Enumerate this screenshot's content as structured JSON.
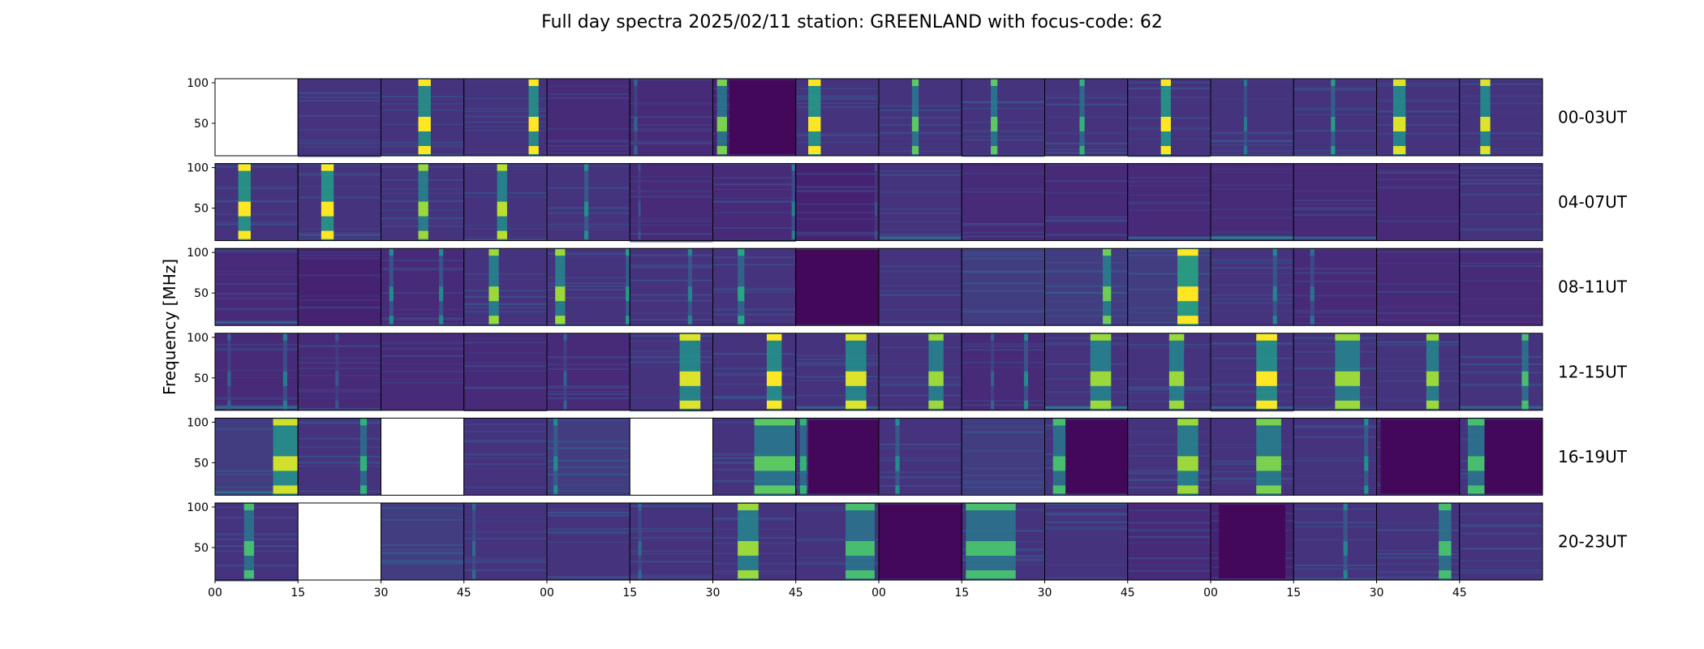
{
  "chart_data": {
    "type": "heatmap",
    "title": "Full day spectra 2025/02/11 station: GREENLAND with focus-code: 62",
    "ylabel": "Frequency [MHz]",
    "xlabel": "",
    "y_ticks": [
      "100",
      "50"
    ],
    "ylim": [
      10,
      105
    ],
    "x_ticks": [
      "00",
      "15",
      "30",
      "45",
      "00",
      "15",
      "30",
      "45",
      "00",
      "15",
      "30",
      "45",
      "00",
      "15",
      "30",
      "45"
    ],
    "colormap": "viridis",
    "rows": [
      {
        "label": "00-03UT",
        "panels": [
          {
            "empty": true
          },
          {
            "bursts": [],
            "level": 0.15
          },
          {
            "bursts": [
              [
                0.45,
                0.15,
                0.85
              ]
            ],
            "level": 0.15
          },
          {
            "bursts": [
              [
                0.78,
                0.12,
                0.85
              ]
            ],
            "level": 0.15
          },
          {
            "bursts": [],
            "level": 0.12
          },
          {
            "bursts": [
              [
                0.05,
                0.04,
                0.2
              ]
            ],
            "level": 0.12
          },
          {
            "bursts": [
              [
                0.05,
                0.12,
                0.7
              ]
            ],
            "level": 0.1,
            "dark": [
              0.2,
              1.0
            ]
          },
          {
            "bursts": [
              [
                0.15,
                0.15,
                0.9
              ]
            ],
            "level": 0.15
          },
          {
            "bursts": [
              [
                0.4,
                0.08,
                0.6
              ]
            ],
            "level": 0.15
          },
          {
            "bursts": [
              [
                0.35,
                0.08,
                0.6
              ]
            ],
            "level": 0.15
          },
          {
            "bursts": [
              [
                0.42,
                0.06,
                0.5
              ]
            ],
            "level": 0.15
          },
          {
            "bursts": [
              [
                0.4,
                0.12,
                0.9
              ]
            ],
            "level": 0.15
          },
          {
            "bursts": [
              [
                0.4,
                0.04,
                0.25
              ]
            ],
            "level": 0.15
          },
          {
            "bursts": [
              [
                0.45,
                0.05,
                0.4
              ]
            ],
            "level": 0.15
          },
          {
            "bursts": [
              [
                0.2,
                0.15,
                0.8
              ]
            ],
            "level": 0.15
          },
          {
            "bursts": [
              [
                0.25,
                0.12,
                0.8
              ]
            ],
            "level": 0.15
          }
        ]
      },
      {
        "label": "04-07UT",
        "panels": [
          {
            "bursts": [
              [
                0.28,
                0.15,
                0.9
              ]
            ],
            "level": 0.15
          },
          {
            "bursts": [
              [
                0.28,
                0.15,
                0.9
              ]
            ],
            "level": 0.15
          },
          {
            "bursts": [
              [
                0.45,
                0.12,
                0.7
              ]
            ],
            "level": 0.15
          },
          {
            "bursts": [
              [
                0.4,
                0.12,
                0.75
              ]
            ],
            "level": 0.15
          },
          {
            "bursts": [
              [
                0.45,
                0.05,
                0.35
              ]
            ],
            "level": 0.15
          },
          {
            "bursts": [
              [
                0.1,
                0.03,
                0.15
              ]
            ],
            "level": 0.12
          },
          {
            "bursts": [
              [
                0.95,
                0.04,
                0.3
              ]
            ],
            "level": 0.12
          },
          {
            "bursts": [
              [
                0.95,
                0.03,
                0.15
              ]
            ],
            "level": 0.1
          },
          {
            "bursts": [],
            "level": 0.15,
            "floor": 0.35
          },
          {
            "bursts": [],
            "level": 0.12
          },
          {
            "bursts": [],
            "level": 0.12
          },
          {
            "bursts": [],
            "level": 0.12,
            "floor": 0.3
          },
          {
            "bursts": [],
            "level": 0.12,
            "floor": 0.45
          },
          {
            "bursts": [],
            "level": 0.12,
            "floor": 0.3
          },
          {
            "bursts": [],
            "level": 0.12
          },
          {
            "bursts": [],
            "level": 0.15
          }
        ]
      },
      {
        "label": "08-11UT",
        "panels": [
          {
            "bursts": [],
            "level": 0.12,
            "floor": 0.3
          },
          {
            "bursts": [],
            "level": 0.1
          },
          {
            "bursts": [
              [
                0.1,
                0.05,
                0.35
              ],
              [
                0.7,
                0.05,
                0.35
              ]
            ],
            "level": 0.12
          },
          {
            "bursts": [
              [
                0.3,
                0.12,
                0.7
              ]
            ],
            "level": 0.15
          },
          {
            "bursts": [
              [
                0.1,
                0.12,
                0.7
              ],
              [
                0.95,
                0.05,
                0.4
              ]
            ],
            "level": 0.15
          },
          {
            "bursts": [
              [
                0.7,
                0.05,
                0.3
              ]
            ],
            "level": 0.15
          },
          {
            "bursts": [
              [
                0.3,
                0.08,
                0.45
              ]
            ],
            "level": 0.15
          },
          {
            "bursts": [],
            "level": 0.08,
            "dark": [
              0.0,
              1.0
            ]
          },
          {
            "bursts": [],
            "level": 0.15
          },
          {
            "bursts": [],
            "level": 0.18
          },
          {
            "bursts": [
              [
                0.7,
                0.1,
                0.6
              ]
            ],
            "level": 0.18
          },
          {
            "bursts": [
              [
                0.6,
                0.25,
                0.95
              ]
            ],
            "level": 0.18
          },
          {
            "bursts": [
              [
                0.75,
                0.05,
                0.3
              ]
            ],
            "level": 0.15
          },
          {
            "bursts": [
              [
                0.2,
                0.05,
                0.25
              ]
            ],
            "level": 0.12
          },
          {
            "bursts": [],
            "level": 0.12
          },
          {
            "bursts": [],
            "level": 0.12
          }
        ]
      },
      {
        "label": "12-15UT",
        "panels": [
          {
            "bursts": [
              [
                0.15,
                0.04,
                0.2
              ],
              [
                0.82,
                0.05,
                0.3
              ]
            ],
            "level": 0.12,
            "floor": 0.35
          },
          {
            "bursts": [
              [
                0.45,
                0.04,
                0.15
              ]
            ],
            "level": 0.12
          },
          {
            "bursts": [],
            "level": 0.12
          },
          {
            "bursts": [],
            "level": 0.12
          },
          {
            "bursts": [
              [
                0.2,
                0.04,
                0.2
              ]
            ],
            "level": 0.12
          },
          {
            "bursts": [
              [
                0.6,
                0.25,
                0.8
              ]
            ],
            "level": 0.15
          },
          {
            "bursts": [
              [
                0.65,
                0.18,
                0.85
              ]
            ],
            "level": 0.15
          },
          {
            "bursts": [
              [
                0.6,
                0.25,
                0.8
              ]
            ],
            "level": 0.15,
            "floor": 0.3
          },
          {
            "bursts": [
              [
                0.6,
                0.18,
                0.7
              ]
            ],
            "level": 0.15
          },
          {
            "bursts": [
              [
                0.35,
                0.04,
                0.2
              ],
              [
                0.75,
                0.05,
                0.35
              ]
            ],
            "level": 0.12
          },
          {
            "bursts": [
              [
                0.55,
                0.25,
                0.7
              ]
            ],
            "level": 0.15,
            "floor": 0.4
          },
          {
            "bursts": [
              [
                0.5,
                0.18,
                0.7
              ]
            ],
            "level": 0.15
          },
          {
            "bursts": [
              [
                0.55,
                0.25,
                0.85
              ]
            ],
            "level": 0.15,
            "floor": 0.3
          },
          {
            "bursts": [
              [
                0.5,
                0.3,
                0.7
              ]
            ],
            "level": 0.15
          },
          {
            "bursts": [
              [
                0.6,
                0.15,
                0.7
              ]
            ],
            "level": 0.15
          },
          {
            "bursts": [
              [
                0.75,
                0.08,
                0.55
              ]
            ],
            "level": 0.15,
            "floor": 0.3
          }
        ]
      },
      {
        "label": "16-19UT",
        "panels": [
          {
            "bursts": [
              [
                0.7,
                0.3,
                0.75
              ]
            ],
            "level": 0.18,
            "floor": 0.35
          },
          {
            "bursts": [
              [
                0.75,
                0.08,
                0.5
              ]
            ],
            "level": 0.15
          },
          {
            "empty": true
          },
          {
            "bursts": [],
            "level": 0.15
          },
          {
            "bursts": [
              [
                0.08,
                0.05,
                0.3
              ]
            ],
            "level": 0.18
          },
          {
            "empty": true
          },
          {
            "bursts": [
              [
                0.5,
                0.5,
                0.6
              ]
            ],
            "level": 0.15
          },
          {
            "bursts": [
              [
                0.05,
                0.08,
                0.5
              ]
            ],
            "level": 0.15,
            "dark": [
              0.15,
              1.0
            ]
          },
          {
            "bursts": [
              [
                0.2,
                0.05,
                0.35
              ]
            ],
            "level": 0.15
          },
          {
            "bursts": [],
            "level": 0.18
          },
          {
            "bursts": [
              [
                0.1,
                0.15,
                0.55
              ]
            ],
            "level": 0.15,
            "dark": [
              0.25,
              1.0
            ]
          },
          {
            "bursts": [
              [
                0.6,
                0.25,
                0.7
              ]
            ],
            "level": 0.15
          },
          {
            "bursts": [
              [
                0.55,
                0.3,
                0.65
              ]
            ],
            "level": 0.15
          },
          {
            "bursts": [
              [
                0.85,
                0.05,
                0.35
              ]
            ],
            "level": 0.15
          },
          {
            "bursts": [],
            "level": 0.1,
            "dark": [
              0.05,
              1.0
            ]
          },
          {
            "bursts": [
              [
                0.1,
                0.2,
                0.55
              ]
            ],
            "level": 0.15,
            "dark": [
              0.3,
              1.0
            ]
          }
        ]
      },
      {
        "label": "20-23UT",
        "panels": [
          {
            "bursts": [
              [
                0.35,
                0.12,
                0.55
              ]
            ],
            "level": 0.15
          },
          {
            "empty": true
          },
          {
            "bursts": [],
            "level": 0.18
          },
          {
            "bursts": [
              [
                0.1,
                0.04,
                0.2
              ]
            ],
            "level": 0.15
          },
          {
            "bursts": [],
            "level": 0.15
          },
          {
            "bursts": [
              [
                0.1,
                0.04,
                0.2
              ]
            ],
            "level": 0.15
          },
          {
            "bursts": [
              [
                0.3,
                0.25,
                0.7
              ]
            ],
            "level": 0.15
          },
          {
            "bursts": [
              [
                0.6,
                0.35,
                0.55
              ]
            ],
            "level": 0.15
          },
          {
            "bursts": [],
            "level": 0.1,
            "dark": [
              0.0,
              1.0
            ]
          },
          {
            "bursts": [
              [
                0.05,
                0.6,
                0.55
              ]
            ],
            "level": 0.15
          },
          {
            "bursts": [],
            "level": 0.15
          },
          {
            "bursts": [],
            "level": 0.12
          },
          {
            "bursts": [],
            "level": 0.1,
            "dark": [
              0.1,
              0.9
            ]
          },
          {
            "bursts": [
              [
                0.6,
                0.05,
                0.3
              ]
            ],
            "level": 0.15
          },
          {
            "bursts": [
              [
                0.75,
                0.15,
                0.55
              ]
            ],
            "level": 0.15
          },
          {
            "bursts": [],
            "level": 0.15
          }
        ]
      }
    ]
  }
}
